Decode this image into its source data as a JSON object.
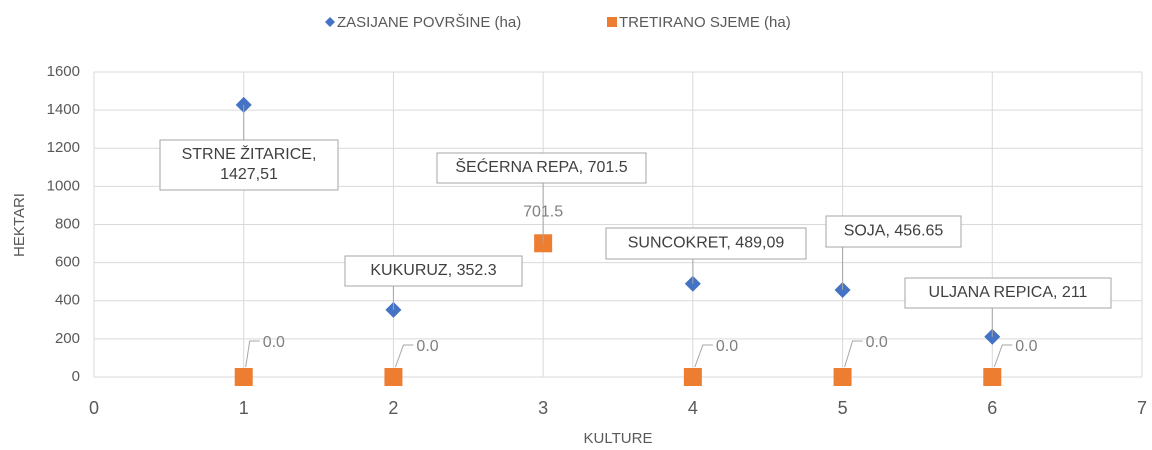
{
  "chart_data": {
    "type": "scatter",
    "x_label": "KULTURE",
    "y_label": "HEKTARI",
    "xlim": [
      0,
      7
    ],
    "xticks": [
      0,
      1,
      2,
      3,
      4,
      5,
      6,
      7
    ],
    "ylim": [
      0,
      1600
    ],
    "yticks": [
      0,
      200,
      400,
      600,
      800,
      1000,
      1200,
      1400,
      1600
    ],
    "grid": true,
    "legend": "top",
    "series": [
      {
        "name": "ZASIJANE POVRŠINE (ha)",
        "color": "#4472c4",
        "marker": "diamond",
        "x": [
          1,
          2,
          3,
          4,
          5,
          6
        ],
        "values": [
          1427.51,
          352.3,
          701.5,
          489.09,
          456.65,
          211
        ],
        "value_labels": [
          "STRNE ŽITARICE, 1427,51",
          "KUKURUZ, 352.3",
          "ŠEĆERNA REPA, 701.5",
          "SUNCOKRET, 489,09",
          "SOJA, 456.65",
          "ULJANA REPICA, 211"
        ]
      },
      {
        "name": "TRETIRANO SJEME (ha)",
        "color": "#ed7d31",
        "marker": "square",
        "x": [
          1,
          2,
          3,
          4,
          5,
          6
        ],
        "values": [
          0,
          0,
          701.5,
          0,
          0,
          0
        ],
        "value_labels": [
          "0.0",
          "0.0",
          "701.5",
          "0.0",
          "0.0",
          "0.0"
        ]
      }
    ]
  }
}
